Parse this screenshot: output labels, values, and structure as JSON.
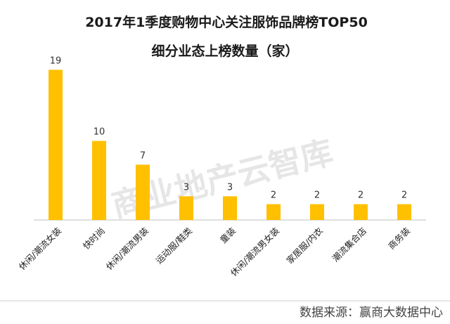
{
  "colors": {
    "bar": "#FFC000",
    "axis": "#bfbfbf",
    "divider": "#cccccc"
  },
  "watermark_text": "商业地产云智库",
  "source_text": "数据来源：赢商大数据中心",
  "chart_data": {
    "type": "bar",
    "title": "2017年1季度购物中心关注服饰品牌榜TOP50",
    "subtitle": "细分业态上榜数量（家）",
    "categories": [
      "休闲/潮流女装",
      "快时尚",
      "休闲/潮流男装",
      "运动服/鞋类",
      "童装",
      "休闲/潮流男女装",
      "家居服/内衣",
      "潮流集合店",
      "商务装"
    ],
    "values": [
      19,
      10,
      7,
      3,
      3,
      2,
      2,
      2,
      2
    ],
    "ylim": [
      0,
      20
    ],
    "grid": false,
    "legend": "none",
    "data_labels": true
  }
}
